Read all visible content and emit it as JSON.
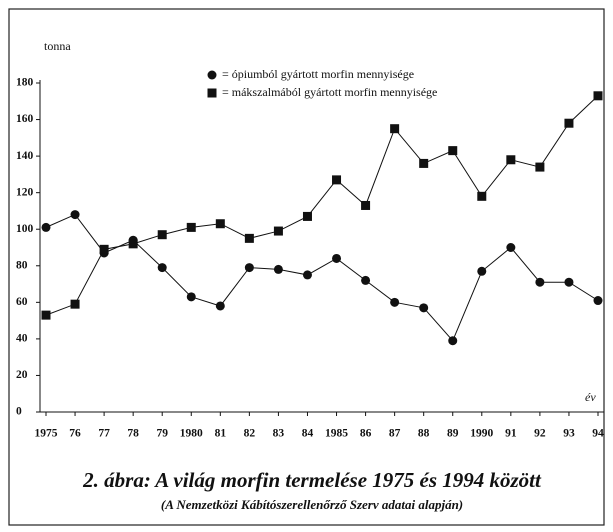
{
  "chart_data": {
    "type": "line",
    "title": "2. ábra: A világ morfin termelése 1975 és 1994 között",
    "subtitle": "(A Nemzetközi Kábítószerellenőrző Szerv adatai alapján)",
    "y_label": "tonna",
    "x_label": "év",
    "categories": [
      "1975",
      "76",
      "77",
      "78",
      "79",
      "1980",
      "81",
      "82",
      "83",
      "84",
      "1985",
      "86",
      "87",
      "88",
      "89",
      "1990",
      "91",
      "92",
      "93",
      "94"
    ],
    "series": [
      {
        "name": "= ópiumból gyártott morfin mennyisége",
        "color": "#111111",
        "marker": "circle",
        "values": [
          101,
          108,
          87,
          94,
          79,
          63,
          58,
          79,
          78,
          75,
          84,
          72,
          60,
          57,
          39,
          77,
          90,
          71,
          71,
          61
        ]
      },
      {
        "name": "= mákszalmából gyártott morfin mennyisége",
        "color": "#111111",
        "marker": "square",
        "values": [
          53,
          59,
          89,
          92,
          97,
          101,
          103,
          95,
          99,
          107,
          127,
          113,
          155,
          136,
          143,
          118,
          138,
          134,
          158,
          173
        ]
      }
    ],
    "ylim": [
      0,
      180
    ],
    "yticks": [
      0,
      20,
      40,
      60,
      80,
      100,
      120,
      140,
      160,
      180
    ]
  }
}
